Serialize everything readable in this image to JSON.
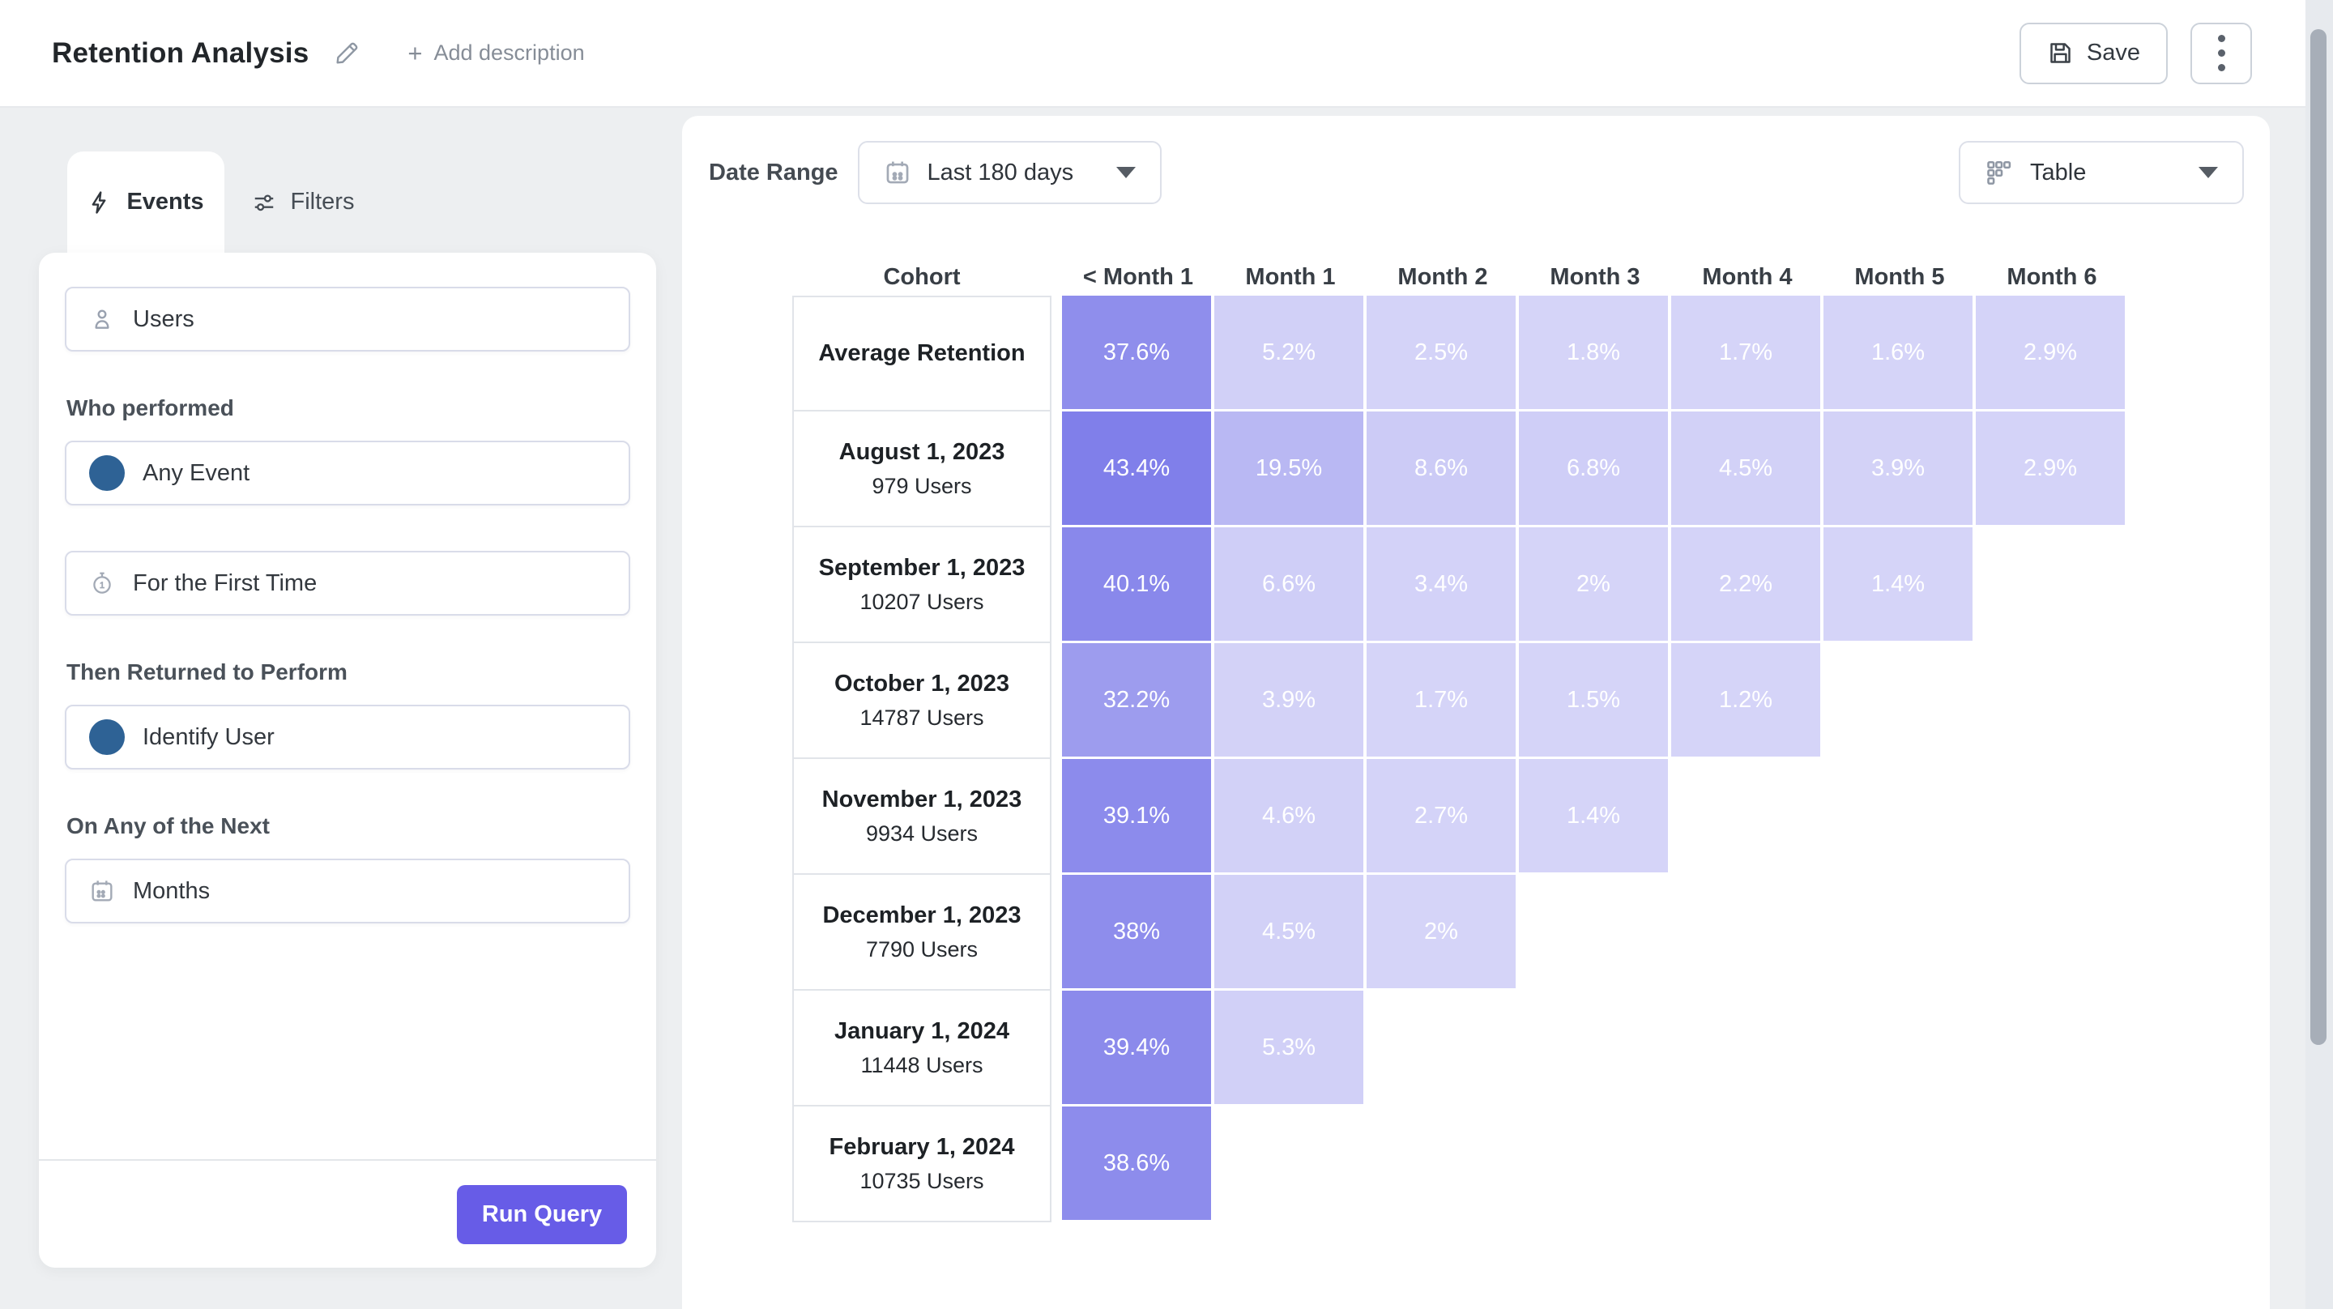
{
  "header": {
    "title": "Retention Analysis",
    "add_description": "Add description",
    "plus": "+",
    "save_label": "Save"
  },
  "sidebar": {
    "tabs": [
      {
        "label": "Events"
      },
      {
        "label": "Filters"
      }
    ],
    "users_label": "Users",
    "who_performed_label": "Who performed",
    "any_event_label": "Any Event",
    "first_time_label": "For the First Time",
    "then_returned_label": "Then Returned to Perform",
    "identify_user_label": "Identify User",
    "on_any_next_label": "On Any of the Next",
    "months_label": "Months",
    "run_query_label": "Run Query"
  },
  "toolbar": {
    "date_range_label": "Date Range",
    "date_range_value": "Last 180 days",
    "view_selector_value": "Table"
  },
  "colors": {
    "accent": "#675ce7",
    "event_dot": "#2e6295",
    "cell_min": "#d6d5f8",
    "cell_max": "#7c7be9"
  },
  "chart_data": {
    "type": "table",
    "title": "Retention cohort table",
    "columns": [
      "Cohort",
      "< Month 1",
      "Month 1",
      "Month 2",
      "Month 3",
      "Month 4",
      "Month 5",
      "Month 6"
    ],
    "scale_max_percent": 45,
    "rows": [
      {
        "cohort": "Average Retention",
        "users": null,
        "values": [
          37.6,
          5.2,
          2.5,
          1.8,
          1.7,
          1.6,
          2.9
        ]
      },
      {
        "cohort": "August 1, 2023",
        "users": "979 Users",
        "values": [
          43.4,
          19.5,
          8.6,
          6.8,
          4.5,
          3.9,
          2.9
        ]
      },
      {
        "cohort": "September 1, 2023",
        "users": "10207 Users",
        "values": [
          40.1,
          6.6,
          3.4,
          2,
          2.2,
          1.4
        ]
      },
      {
        "cohort": "October 1, 2023",
        "users": "14787 Users",
        "values": [
          32.2,
          3.9,
          1.7,
          1.5,
          1.2
        ]
      },
      {
        "cohort": "November 1, 2023",
        "users": "9934 Users",
        "values": [
          39.1,
          4.6,
          2.7,
          1.4
        ]
      },
      {
        "cohort": "December 1, 2023",
        "users": "7790 Users",
        "values": [
          38,
          4.5,
          2
        ]
      },
      {
        "cohort": "January 1, 2024",
        "users": "11448 Users",
        "values": [
          39.4,
          5.3
        ]
      },
      {
        "cohort": "February 1, 2024",
        "users": "10735 Users",
        "values": [
          38.6
        ]
      }
    ]
  }
}
